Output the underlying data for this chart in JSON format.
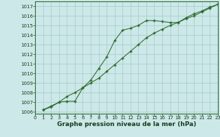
{
  "line1_x": [
    1,
    2,
    3,
    4,
    5,
    6,
    7,
    8,
    9,
    10,
    11,
    12,
    13,
    14,
    15,
    16,
    17,
    18,
    19,
    20,
    21,
    22,
    23
  ],
  "line1_y": [
    1006.2,
    1006.6,
    1007.0,
    1007.1,
    1007.1,
    1008.5,
    1009.3,
    1010.5,
    1011.7,
    1013.4,
    1014.5,
    1014.7,
    1015.0,
    1015.5,
    1015.5,
    1015.4,
    1015.3,
    1015.3,
    1015.8,
    1016.2,
    1016.5,
    1016.9,
    1017.2
  ],
  "line2_x": [
    1,
    2,
    3,
    4,
    5,
    6,
    7,
    8,
    9,
    10,
    11,
    12,
    13,
    14,
    15,
    16,
    17,
    18,
    19,
    20,
    21,
    22,
    23
  ],
  "line2_y": [
    1006.2,
    1006.5,
    1007.0,
    1007.6,
    1008.0,
    1008.5,
    1009.0,
    1009.5,
    1010.2,
    1010.9,
    1011.6,
    1012.3,
    1013.0,
    1013.7,
    1014.2,
    1014.6,
    1015.0,
    1015.3,
    1015.7,
    1016.0,
    1016.4,
    1016.8,
    1017.2
  ],
  "line_color": "#2d6a2d",
  "bg_color": "#cce8e8",
  "grid_color": "#aacece",
  "xlabel": "Graphe pression niveau de la mer (hPa)",
  "ylim": [
    1005.8,
    1017.5
  ],
  "xlim": [
    0,
    23
  ],
  "yticks": [
    1006,
    1007,
    1008,
    1009,
    1010,
    1011,
    1012,
    1013,
    1014,
    1015,
    1016,
    1017
  ],
  "xticks": [
    0,
    1,
    2,
    3,
    4,
    5,
    6,
    7,
    8,
    9,
    10,
    11,
    12,
    13,
    14,
    15,
    16,
    17,
    18,
    19,
    20,
    21,
    22,
    23
  ],
  "tick_fontsize": 5.0,
  "xlabel_fontsize": 6.5,
  "marker": "+",
  "marker_size": 3.5,
  "linewidth": 0.8
}
